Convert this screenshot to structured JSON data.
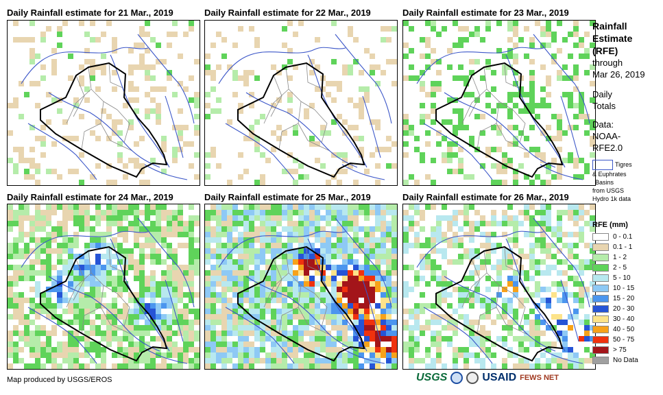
{
  "panels": [
    {
      "title": "Daily Rainfall estimate for 21 Mar., 2019",
      "intensity": 0
    },
    {
      "title": "Daily Rainfall estimate for 22 Mar., 2019",
      "intensity": 0
    },
    {
      "title": "Daily Rainfall estimate for 23 Mar., 2019",
      "intensity": 1
    },
    {
      "title": "Daily Rainfall estimate for 24 Mar., 2019",
      "intensity": 2
    },
    {
      "title": "Daily Rainfall estimate for 25 Mar., 2019",
      "intensity": 4
    },
    {
      "title": "Daily Rainfall estimate for 26 Mar., 2019",
      "intensity": 3
    }
  ],
  "side": {
    "title_line1": "Rainfall",
    "title_line2": "Estimate",
    "title_line3": "(RFE)",
    "through": "through",
    "date": "Mar 26, 2019",
    "daily": "Daily",
    "totals": "Totals",
    "data_label": "Data:",
    "data_src1": "NOAA-",
    "data_src2": "RFE2.0",
    "basin_line1": "Tigres",
    "basin_line2": "& Euphrates",
    "basin_line3": "Basins",
    "basin_line4": "from USGS",
    "basin_line5": "Hydro 1k data"
  },
  "legend": {
    "title": "RFE (mm)",
    "items": [
      {
        "label": "0 - 0.1",
        "color": "#ffffff"
      },
      {
        "label": "0.1 - 1",
        "color": "#e8d5b0"
      },
      {
        "label": "1 - 2",
        "color": "#b5ecaa"
      },
      {
        "label": "2 - 5",
        "color": "#5fd35a"
      },
      {
        "label": "5 - 10",
        "color": "#b8e8ef"
      },
      {
        "label": "10 - 15",
        "color": "#8ec9f5"
      },
      {
        "label": "15 - 20",
        "color": "#4b95ee"
      },
      {
        "label": "20 - 30",
        "color": "#2654d6"
      },
      {
        "label": "30 - 40",
        "color": "#fde38a"
      },
      {
        "label": "40 - 50",
        "color": "#f7a21a"
      },
      {
        "label": "50 - 75",
        "color": "#f0320e"
      },
      {
        "label": "> 75",
        "color": "#a3151a"
      },
      {
        "label": "No Data",
        "color": "#a0a0a0"
      }
    ]
  },
  "footer": {
    "credit": "Map produced by USGS/EROS",
    "logo_usgs": "USGS",
    "logo_usaid": "USAID",
    "logo_fews": "FEWS NET"
  }
}
